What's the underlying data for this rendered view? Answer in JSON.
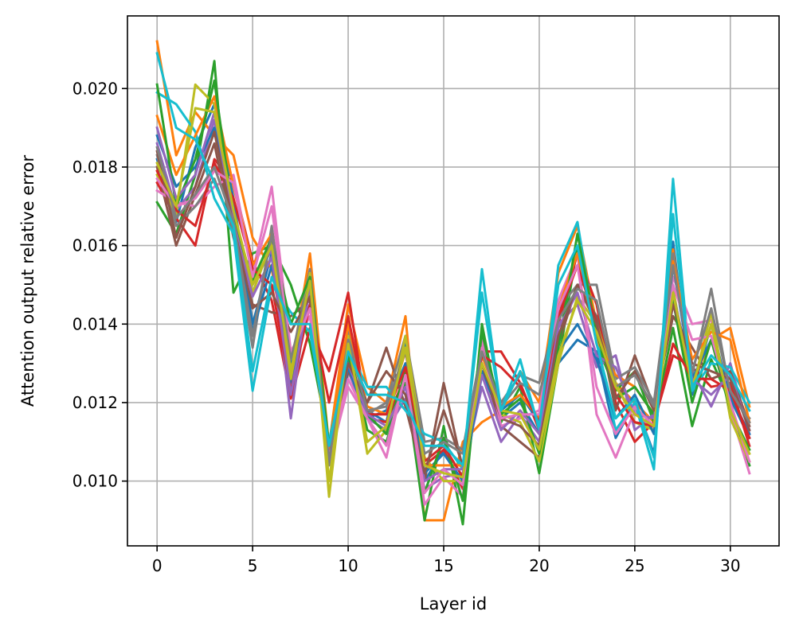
{
  "chart_data": {
    "type": "line",
    "xlabel": "Layer id",
    "ylabel": "Attention output relative error",
    "xlim": [
      -1.55,
      32.55
    ],
    "ylim": [
      0.00835,
      0.02185
    ],
    "x_ticks": [
      0,
      5,
      10,
      15,
      20,
      25,
      30
    ],
    "y_ticks": [
      0.01,
      0.012,
      0.014,
      0.016,
      0.018,
      0.02
    ],
    "y_tick_labels": [
      "0.010",
      "0.012",
      "0.014",
      "0.016",
      "0.018",
      "0.020"
    ],
    "grid": true,
    "x": [
      0,
      1,
      2,
      3,
      4,
      5,
      6,
      7,
      8,
      9,
      10,
      11,
      12,
      13,
      14,
      15,
      16,
      17,
      18,
      19,
      20,
      21,
      22,
      23,
      24,
      25,
      26,
      27,
      28,
      29,
      30,
      31
    ],
    "series": [
      {
        "color": "#1f77b4",
        "values": [
          0.0182,
          0.0166,
          0.0185,
          0.0196,
          0.0172,
          0.014,
          0.0158,
          0.0125,
          0.015,
          0.0105,
          0.0131,
          0.0118,
          0.0115,
          0.0135,
          0.01,
          0.0108,
          0.0098,
          0.0128,
          0.0116,
          0.012,
          0.0112,
          0.013,
          0.0136,
          0.0133,
          0.0111,
          0.012,
          0.0107,
          0.0161,
          0.0122,
          0.014,
          0.0121,
          0.0111
        ]
      },
      {
        "color": "#ff7f0e",
        "values": [
          0.0212,
          0.0183,
          0.0194,
          0.0188,
          0.0183,
          0.0162,
          0.0154,
          0.0128,
          0.0158,
          0.0109,
          0.0145,
          0.0124,
          0.012,
          0.0142,
          0.009,
          0.009,
          0.011,
          0.0115,
          0.0118,
          0.0128,
          0.012,
          0.0153,
          0.0165,
          0.014,
          0.0125,
          0.012,
          0.0115,
          0.0159,
          0.0125,
          0.0136,
          0.0139,
          0.0119
        ]
      },
      {
        "color": "#2ca02c",
        "values": [
          0.0171,
          0.0163,
          0.0178,
          0.0207,
          0.0148,
          0.0158,
          0.016,
          0.015,
          0.0135,
          0.011,
          0.0135,
          0.0113,
          0.011,
          0.0125,
          0.009,
          0.0114,
          0.0089,
          0.014,
          0.0115,
          0.0124,
          0.0102,
          0.013,
          0.016,
          0.0135,
          0.0123,
          0.0128,
          0.0115,
          0.0139,
          0.0114,
          0.0131,
          0.012,
          0.0104
        ]
      },
      {
        "color": "#d62728",
        "values": [
          0.0176,
          0.0167,
          0.016,
          0.0182,
          0.0176,
          0.0156,
          0.0146,
          0.0121,
          0.0139,
          0.0128,
          0.0148,
          0.0116,
          0.0115,
          0.0127,
          0.0104,
          0.0108,
          0.0098,
          0.0133,
          0.0133,
          0.0125,
          0.0113,
          0.014,
          0.0158,
          0.0145,
          0.012,
          0.011,
          0.0115,
          0.0132,
          0.0129,
          0.0124,
          0.0125,
          0.0109
        ]
      },
      {
        "color": "#9467bd",
        "values": [
          0.0186,
          0.0169,
          0.0175,
          0.0192,
          0.0165,
          0.015,
          0.0159,
          0.0116,
          0.0152,
          0.0107,
          0.0128,
          0.0116,
          0.0113,
          0.0121,
          0.0098,
          0.0101,
          0.0102,
          0.0124,
          0.011,
          0.0117,
          0.011,
          0.014,
          0.0145,
          0.0129,
          0.0132,
          0.0113,
          0.0117,
          0.0145,
          0.0128,
          0.0119,
          0.013,
          0.0112
        ]
      },
      {
        "color": "#8c564b",
        "values": [
          0.018,
          0.016,
          0.0173,
          0.0186,
          0.0162,
          0.0145,
          0.0143,
          0.0142,
          0.0146,
          0.0105,
          0.0128,
          0.012,
          0.0134,
          0.0119,
          0.01,
          0.0125,
          0.0103,
          0.013,
          0.0114,
          0.011,
          0.0106,
          0.0135,
          0.015,
          0.0142,
          0.0118,
          0.0132,
          0.0119,
          0.0142,
          0.0134,
          0.0126,
          0.0128,
          0.0114
        ]
      },
      {
        "color": "#e377c2",
        "values": [
          0.0174,
          0.0171,
          0.017,
          0.0175,
          0.0178,
          0.0153,
          0.0175,
          0.0133,
          0.0142,
          0.0105,
          0.0124,
          0.0116,
          0.0106,
          0.0128,
          0.0094,
          0.0101,
          0.0096,
          0.0136,
          0.0114,
          0.0116,
          0.0118,
          0.0146,
          0.0158,
          0.0117,
          0.0106,
          0.0118,
          0.0113,
          0.0152,
          0.014,
          0.0141,
          0.0118,
          0.0102
        ]
      },
      {
        "color": "#7f7f7f",
        "values": [
          0.0183,
          0.0165,
          0.017,
          0.0177,
          0.0164,
          0.0134,
          0.0165,
          0.013,
          0.0154,
          0.0104,
          0.0139,
          0.0117,
          0.012,
          0.0137,
          0.011,
          0.0111,
          0.0108,
          0.0134,
          0.012,
          0.0127,
          0.0125,
          0.0144,
          0.015,
          0.015,
          0.0126,
          0.0129,
          0.012,
          0.0158,
          0.0127,
          0.0149,
          0.0122,
          0.0116
        ]
      },
      {
        "color": "#bcbd22",
        "values": [
          0.0178,
          0.0168,
          0.0201,
          0.0196,
          0.0168,
          0.0148,
          0.0161,
          0.0126,
          0.0153,
          0.0096,
          0.0137,
          0.0107,
          0.0113,
          0.0137,
          0.0106,
          0.01,
          0.01,
          0.013,
          0.0117,
          0.0115,
          0.0105,
          0.013,
          0.0147,
          0.014,
          0.0125,
          0.0115,
          0.0113,
          0.0149,
          0.0123,
          0.0143,
          0.0116,
          0.0105
        ]
      },
      {
        "color": "#17becf",
        "values": [
          0.0199,
          0.0196,
          0.0189,
          0.0172,
          0.0163,
          0.0123,
          0.015,
          0.0143,
          0.0138,
          0.011,
          0.0134,
          0.0124,
          0.0124,
          0.0118,
          0.0112,
          0.011,
          0.0103,
          0.0154,
          0.0118,
          0.0131,
          0.0113,
          0.0155,
          0.0166,
          0.0136,
          0.0113,
          0.012,
          0.0103,
          0.0177,
          0.0123,
          0.013,
          0.0129,
          0.012
        ]
      },
      {
        "color": "#1f77b4",
        "values": [
          0.0188,
          0.0175,
          0.018,
          0.019,
          0.017,
          0.0138,
          0.0155,
          0.013,
          0.0145,
          0.0106,
          0.0129,
          0.0116,
          0.0118,
          0.013,
          0.0102,
          0.0107,
          0.01,
          0.0127,
          0.0118,
          0.0122,
          0.0115,
          0.0133,
          0.014,
          0.0131,
          0.0116,
          0.0122,
          0.0112,
          0.0155,
          0.0126,
          0.0136,
          0.0122,
          0.0112
        ]
      },
      {
        "color": "#ff7f0e",
        "values": [
          0.0193,
          0.0178,
          0.0188,
          0.0198,
          0.0175,
          0.0155,
          0.0163,
          0.0128,
          0.015,
          0.0108,
          0.014,
          0.0119,
          0.0117,
          0.0133,
          0.0104,
          0.0104,
          0.0104,
          0.0132,
          0.0119,
          0.0122,
          0.0116,
          0.0144,
          0.0158,
          0.0136,
          0.0127,
          0.0124,
          0.0117,
          0.0156,
          0.0131,
          0.0138,
          0.0136,
          0.0115
        ]
      },
      {
        "color": "#2ca02c",
        "values": [
          0.0201,
          0.017,
          0.0182,
          0.0202,
          0.0167,
          0.0151,
          0.0162,
          0.014,
          0.0152,
          0.0109,
          0.0132,
          0.0117,
          0.0112,
          0.0128,
          0.0097,
          0.0111,
          0.0095,
          0.0138,
          0.0117,
          0.0121,
          0.0107,
          0.0134,
          0.0163,
          0.0138,
          0.0121,
          0.0124,
          0.0117,
          0.0146,
          0.012,
          0.0136,
          0.0118,
          0.0108
        ]
      },
      {
        "color": "#d62728",
        "values": [
          0.0179,
          0.0169,
          0.0165,
          0.0181,
          0.0172,
          0.0154,
          0.015,
          0.0123,
          0.0145,
          0.012,
          0.0142,
          0.0117,
          0.0117,
          0.0129,
          0.0105,
          0.0109,
          0.0101,
          0.0132,
          0.0129,
          0.0124,
          0.0115,
          0.0142,
          0.0155,
          0.014,
          0.0122,
          0.0115,
          0.0114,
          0.0135,
          0.0126,
          0.0126,
          0.0123,
          0.0111
        ]
      },
      {
        "color": "#9467bd",
        "values": [
          0.019,
          0.0172,
          0.0178,
          0.0194,
          0.0166,
          0.0147,
          0.0157,
          0.0122,
          0.0149,
          0.0105,
          0.013,
          0.0117,
          0.0114,
          0.0124,
          0.01,
          0.0103,
          0.0103,
          0.0127,
          0.0113,
          0.0118,
          0.0112,
          0.0139,
          0.0148,
          0.0132,
          0.0129,
          0.0117,
          0.0116,
          0.0148,
          0.0126,
          0.0122,
          0.0127,
          0.0113
        ]
      },
      {
        "color": "#8c564b",
        "values": [
          0.0184,
          0.0162,
          0.0175,
          0.0189,
          0.0165,
          0.0144,
          0.0148,
          0.0138,
          0.0147,
          0.0106,
          0.013,
          0.012,
          0.0128,
          0.0122,
          0.0102,
          0.0118,
          0.0104,
          0.013,
          0.0116,
          0.0114,
          0.0109,
          0.0137,
          0.015,
          0.014,
          0.0121,
          0.0128,
          0.0118,
          0.0145,
          0.013,
          0.0128,
          0.0126,
          0.0113
        ]
      },
      {
        "color": "#e377c2",
        "values": [
          0.0177,
          0.017,
          0.0172,
          0.0179,
          0.0176,
          0.0152,
          0.017,
          0.0132,
          0.0144,
          0.0106,
          0.0126,
          0.0116,
          0.0109,
          0.0127,
          0.0097,
          0.0103,
          0.0099,
          0.0134,
          0.0116,
          0.0117,
          0.0117,
          0.0144,
          0.0155,
          0.0124,
          0.0112,
          0.0119,
          0.0114,
          0.015,
          0.0136,
          0.0137,
          0.012,
          0.0105
        ]
      },
      {
        "color": "#7f7f7f",
        "values": [
          0.0185,
          0.0167,
          0.0173,
          0.018,
          0.0166,
          0.0137,
          0.0163,
          0.0131,
          0.0151,
          0.0105,
          0.0136,
          0.0118,
          0.0119,
          0.0133,
          0.0107,
          0.011,
          0.0107,
          0.0133,
          0.0119,
          0.0125,
          0.0122,
          0.0141,
          0.0149,
          0.0146,
          0.0124,
          0.0127,
          0.0119,
          0.0155,
          0.0128,
          0.0144,
          0.0123,
          0.0115
        ]
      },
      {
        "color": "#bcbd22",
        "values": [
          0.0181,
          0.017,
          0.0195,
          0.0194,
          0.0169,
          0.015,
          0.016,
          0.0128,
          0.0151,
          0.01,
          0.0135,
          0.011,
          0.0114,
          0.0134,
          0.0104,
          0.0102,
          0.0101,
          0.013,
          0.0118,
          0.0117,
          0.0108,
          0.0132,
          0.0146,
          0.0138,
          0.0124,
          0.0117,
          0.0114,
          0.0148,
          0.0124,
          0.014,
          0.0118,
          0.0107
        ]
      },
      {
        "color": "#17becf",
        "values": [
          0.0209,
          0.019,
          0.0187,
          0.0176,
          0.0165,
          0.0128,
          0.0152,
          0.014,
          0.014,
          0.0109,
          0.0133,
          0.0122,
          0.0122,
          0.012,
          0.0109,
          0.0109,
          0.0104,
          0.0148,
          0.0118,
          0.0128,
          0.0114,
          0.015,
          0.016,
          0.0135,
          0.0116,
          0.0121,
          0.0106,
          0.0168,
          0.0124,
          0.0132,
          0.0127,
          0.0118
        ]
      }
    ]
  }
}
